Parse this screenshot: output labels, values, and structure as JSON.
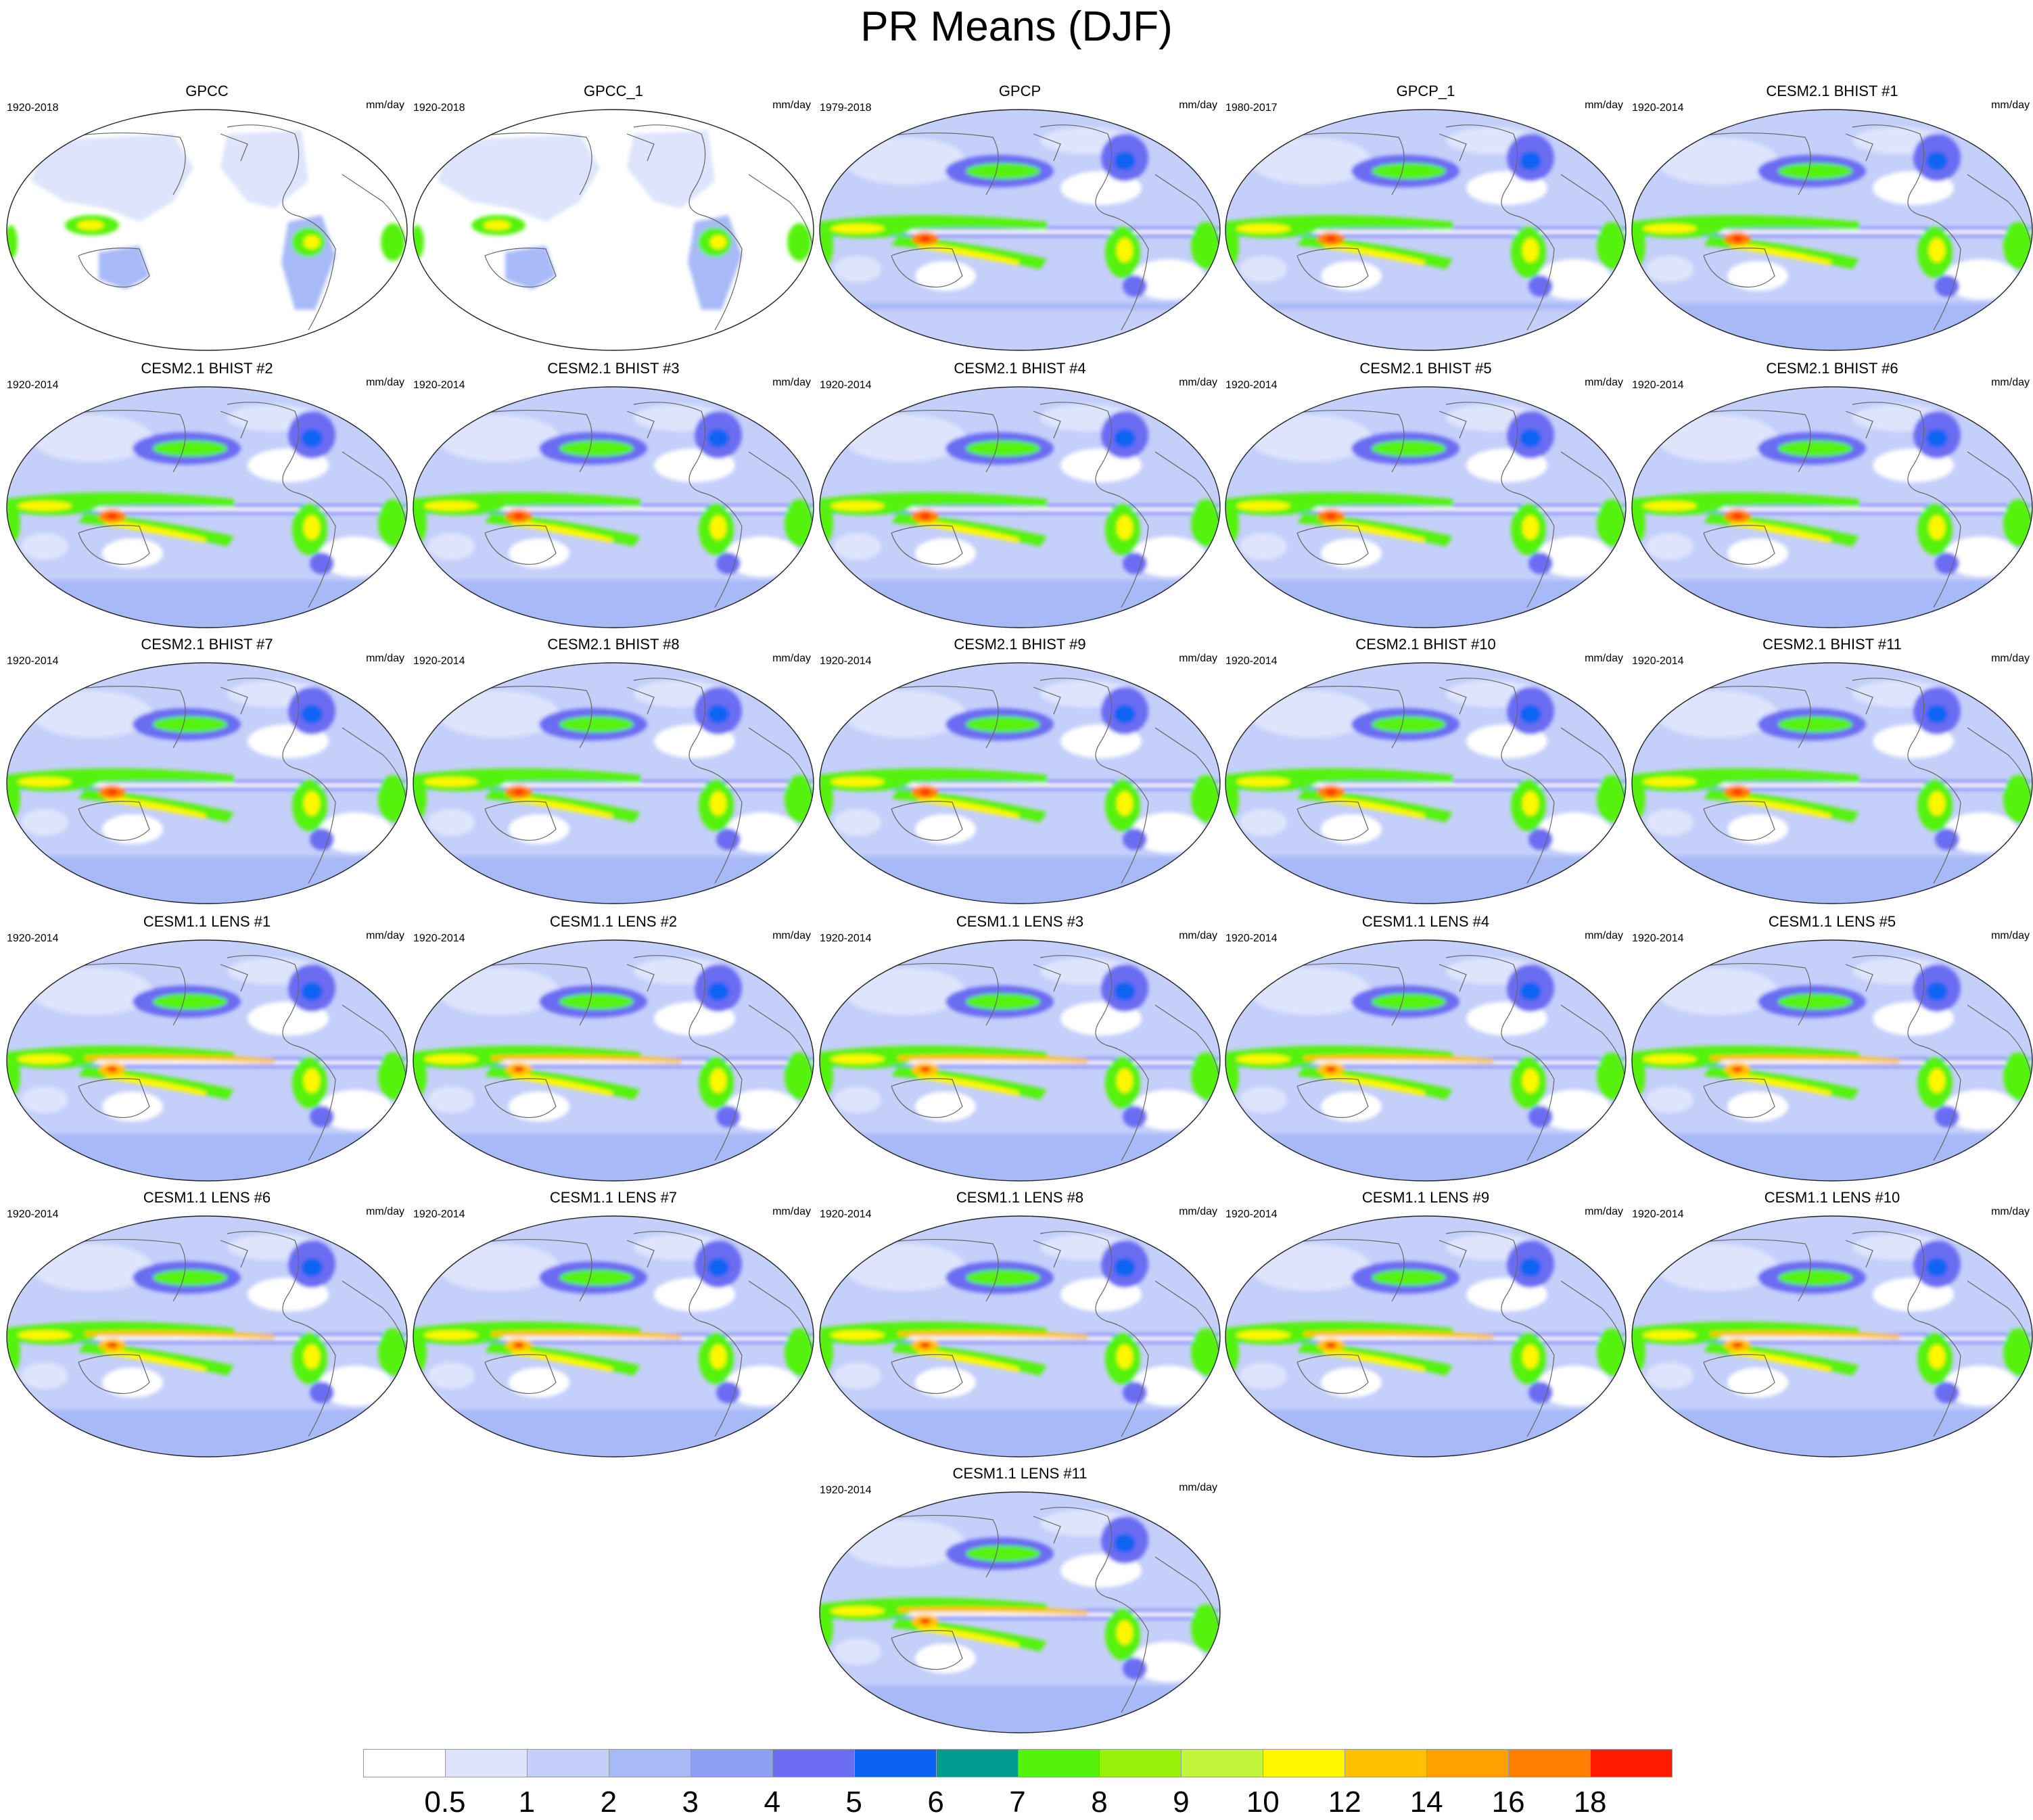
{
  "figure": {
    "title": "PR Means (DJF)",
    "units_label": "mm/day"
  },
  "panels": [
    {
      "title": "GPCC",
      "years": "1920-2018",
      "source": "obs_gauge"
    },
    {
      "title": "GPCC_1",
      "years": "1920-2018",
      "source": "obs_gauge"
    },
    {
      "title": "GPCP",
      "years": "1979-2018",
      "source": "obs_sat"
    },
    {
      "title": "GPCP_1",
      "years": "1980-2017",
      "source": "obs_sat"
    },
    {
      "title": "CESM2.1 BHIST #1",
      "years": "1920-2014",
      "source": "cesm2"
    },
    {
      "title": "CESM2.1 BHIST #2",
      "years": "1920-2014",
      "source": "cesm2"
    },
    {
      "title": "CESM2.1 BHIST #3",
      "years": "1920-2014",
      "source": "cesm2"
    },
    {
      "title": "CESM2.1 BHIST #4",
      "years": "1920-2014",
      "source": "cesm2"
    },
    {
      "title": "CESM2.1 BHIST #5",
      "years": "1920-2014",
      "source": "cesm2"
    },
    {
      "title": "CESM2.1 BHIST #6",
      "years": "1920-2014",
      "source": "cesm2"
    },
    {
      "title": "CESM2.1 BHIST #7",
      "years": "1920-2014",
      "source": "cesm2"
    },
    {
      "title": "CESM2.1 BHIST #8",
      "years": "1920-2014",
      "source": "cesm2"
    },
    {
      "title": "CESM2.1 BHIST #9",
      "years": "1920-2014",
      "source": "cesm2"
    },
    {
      "title": "CESM2.1 BHIST #10",
      "years": "1920-2014",
      "source": "cesm2"
    },
    {
      "title": "CESM2.1 BHIST #11",
      "years": "1920-2014",
      "source": "cesm2"
    },
    {
      "title": "CESM1.1 LENS #1",
      "years": "1920-2014",
      "source": "cesm1"
    },
    {
      "title": "CESM1.1 LENS #2",
      "years": "1920-2014",
      "source": "cesm1"
    },
    {
      "title": "CESM1.1 LENS #3",
      "years": "1920-2014",
      "source": "cesm1"
    },
    {
      "title": "CESM1.1 LENS #4",
      "years": "1920-2014",
      "source": "cesm1"
    },
    {
      "title": "CESM1.1 LENS #5",
      "years": "1920-2014",
      "source": "cesm1"
    },
    {
      "title": "CESM1.1 LENS #6",
      "years": "1920-2014",
      "source": "cesm1"
    },
    {
      "title": "CESM1.1 LENS #7",
      "years": "1920-2014",
      "source": "cesm1"
    },
    {
      "title": "CESM1.1 LENS #8",
      "years": "1920-2014",
      "source": "cesm1"
    },
    {
      "title": "CESM1.1 LENS #9",
      "years": "1920-2014",
      "source": "cesm1"
    },
    {
      "title": "CESM1.1 LENS #10",
      "years": "1920-2014",
      "source": "cesm1"
    },
    {
      "title": "CESM1.1 LENS #11",
      "years": "1920-2014",
      "source": "cesm1"
    }
  ],
  "colorbar": {
    "colors": [
      "#ffffff",
      "#dde4fb",
      "#c4cffa",
      "#a7b9f7",
      "#8ca0f4",
      "#6b6cf2",
      "#0a63f2",
      "#009b91",
      "#55f20a",
      "#97f20a",
      "#c2f53c",
      "#fff700",
      "#ffc000",
      "#ff9f00",
      "#ff7f00",
      "#ff1a00"
    ],
    "labels": [
      "0.5",
      "1",
      "2",
      "3",
      "4",
      "5",
      "6",
      "7",
      "8",
      "9",
      "10",
      "12",
      "14",
      "16",
      "18"
    ]
  }
}
